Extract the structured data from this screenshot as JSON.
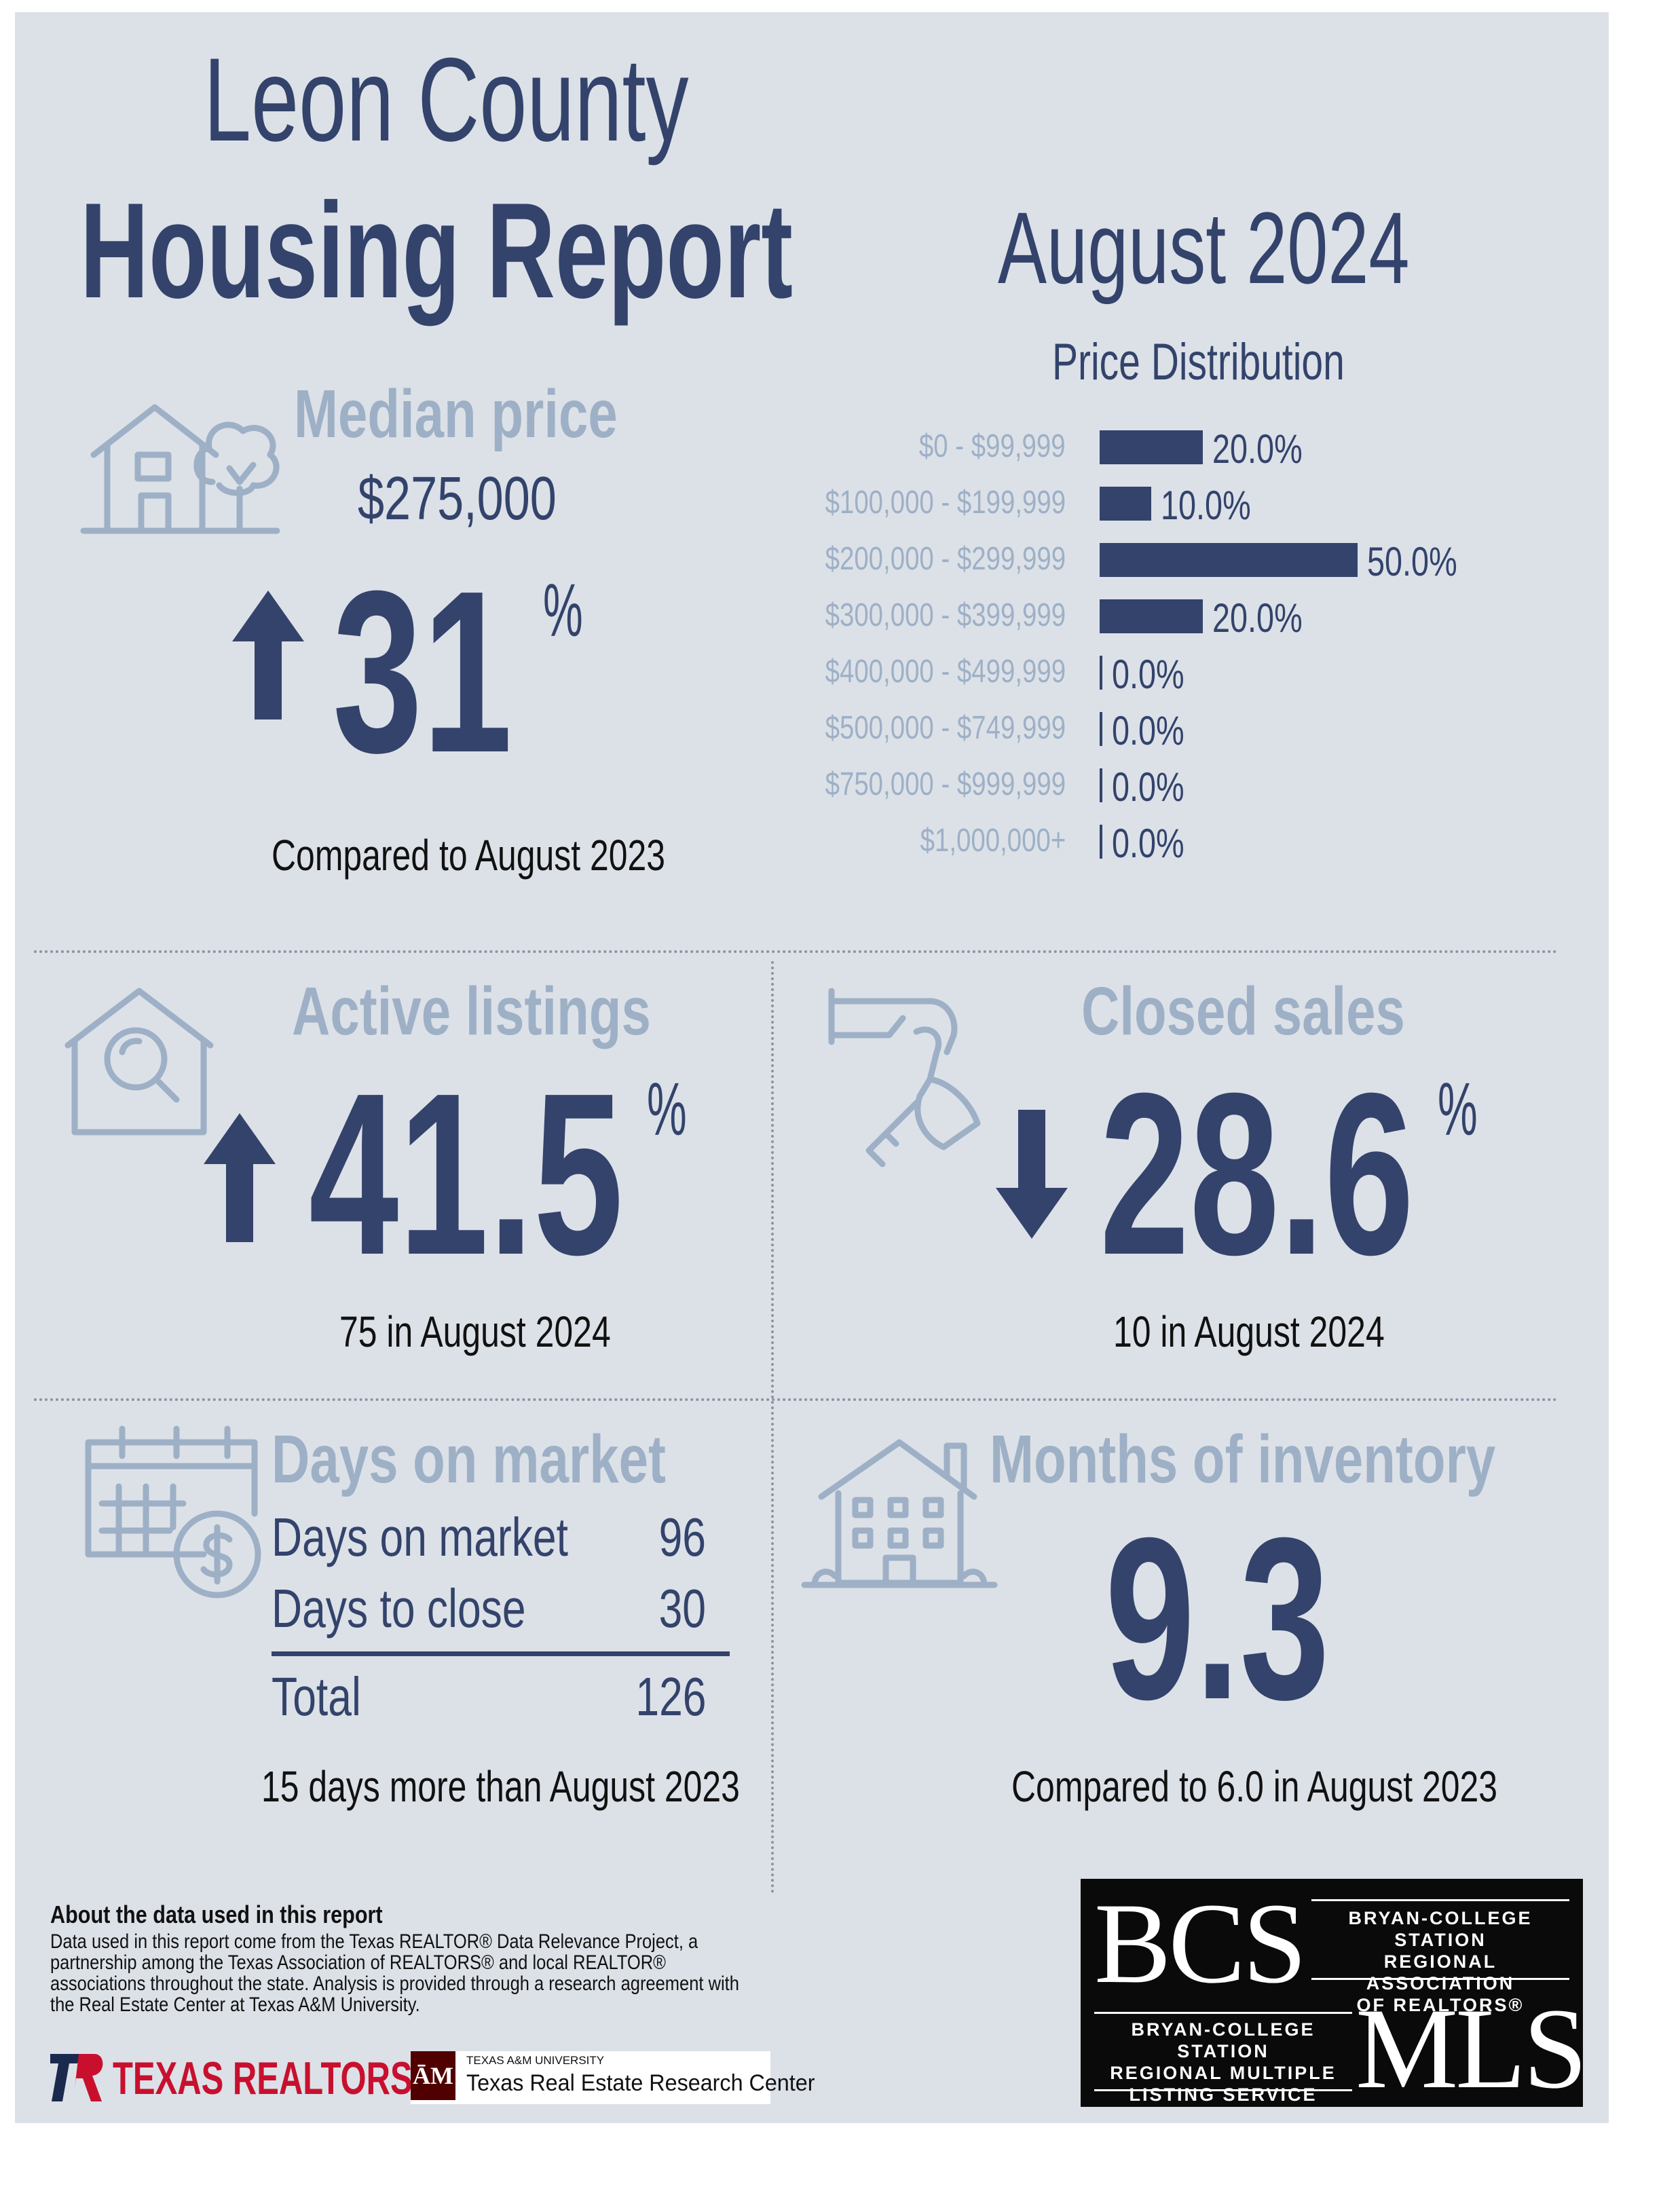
{
  "title": {
    "line1": "Leon County",
    "line2": "Housing Report"
  },
  "report_month": "August 2024",
  "median_price": {
    "heading": "Median price",
    "value": "$275,000",
    "change": "31",
    "percent_sign": "%",
    "direction": "up",
    "caption": "Compared to August 2023"
  },
  "price_distribution": {
    "heading": "Price Distribution",
    "rows": [
      {
        "range": "$0 - $99,999",
        "pct": "20.0%"
      },
      {
        "range": "$100,000 - $199,999",
        "pct": "10.0%"
      },
      {
        "range": "$200,000 - $299,999",
        "pct": "50.0%"
      },
      {
        "range": "$300,000 - $399,999",
        "pct": "20.0%"
      },
      {
        "range": "$400,000 - $499,999",
        "pct": "0.0%"
      },
      {
        "range": "$500,000 - $749,999",
        "pct": "0.0%"
      },
      {
        "range": "$750,000 - $999,999",
        "pct": "0.0%"
      },
      {
        "range": "$1,000,000+",
        "pct": "0.0%"
      }
    ]
  },
  "chart_data": {
    "type": "bar",
    "title": "Price Distribution",
    "orientation": "horizontal",
    "categories": [
      "$0 - $99,999",
      "$100,000 - $199,999",
      "$200,000 - $299,999",
      "$300,000 - $399,999",
      "$400,000 - $499,999",
      "$500,000 - $749,999",
      "$750,000 - $999,999",
      "$1,000,000+"
    ],
    "values": [
      20.0,
      10.0,
      50.0,
      20.0,
      0.0,
      0.0,
      0.0,
      0.0
    ],
    "xlim": [
      0,
      50
    ],
    "grid": false
  },
  "active_listings": {
    "heading": "Active listings",
    "change": "41.5",
    "percent_sign": "%",
    "direction": "up",
    "caption": "75 in August 2024"
  },
  "closed_sales": {
    "heading": "Closed sales",
    "change": "28.6",
    "percent_sign": "%",
    "direction": "down",
    "caption": "10 in August 2024"
  },
  "days_on_market": {
    "heading": "Days on market",
    "rows": [
      {
        "label": "Days on market",
        "value": "96"
      },
      {
        "label": "Days to close",
        "value": "30"
      }
    ],
    "total": {
      "label": "Total",
      "value": "126"
    },
    "caption": "15 days more than August 2023"
  },
  "months_of_inventory": {
    "heading": "Months of inventory",
    "value": "9.3",
    "caption": "Compared to 6.0 in August 2023"
  },
  "about": {
    "heading": "About the data used in this report",
    "body": "Data used in this report come from the Texas REALTOR® Data Relevance Project, a partnership among the Texas Association of REALTORS® and local REALTOR® associations throughout the state. Analysis is provided through a research agreement with the Real Estate Center at Texas A&M University."
  },
  "logos": {
    "texas_realtors": "TEXAS REALTORS",
    "tamu_small": "TEXAS A&M UNIVERSITY",
    "tamu_center": "Texas Real Estate Research Center",
    "bcs": "BCS",
    "bcs_assoc": [
      "BRYAN-COLLEGE STATION",
      "REGIONAL ASSOCIATION",
      "OF REALTORS®"
    ],
    "mls": "MLS",
    "mls_service": [
      "BRYAN-COLLEGE STATION",
      "REGIONAL MULTIPLE",
      "LISTING SERVICE"
    ]
  },
  "colors": {
    "navy": "#33436b",
    "slate": "#9eb0c6",
    "background": "#dce1e8",
    "texas_red": "#c8102e",
    "aggie_maroon": "#500000"
  }
}
